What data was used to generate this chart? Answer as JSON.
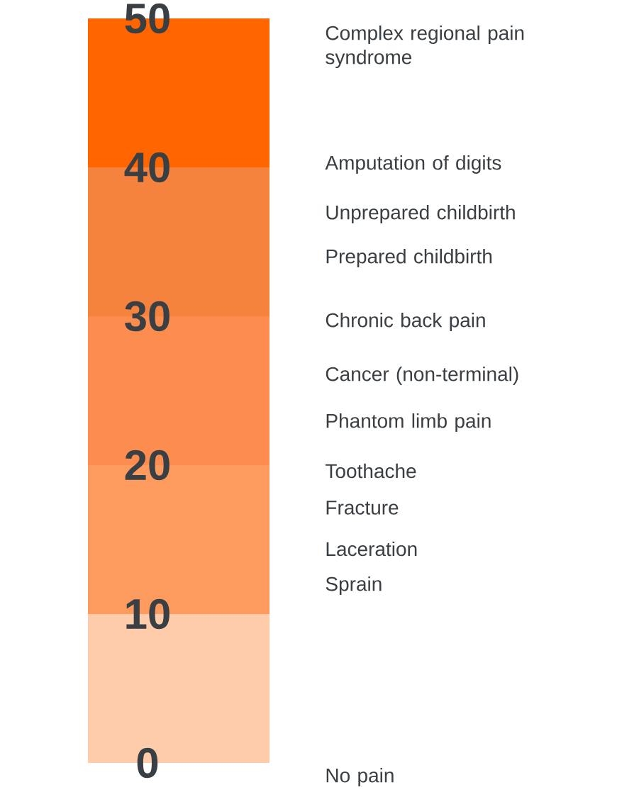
{
  "chart_data": {
    "type": "bar",
    "stacked": true,
    "categories": [
      null
    ],
    "series": [
      {
        "color": "#fecbab",
        "values": [
          10
        ]
      },
      {
        "color": "#fd9a5e",
        "values": [
          10
        ]
      },
      {
        "color": "#fd8d4f",
        "values": [
          10
        ]
      },
      {
        "color": "#f5823d",
        "values": [
          10
        ]
      },
      {
        "color": "#ff6600",
        "values": [
          10
        ]
      }
    ],
    "ylim": [
      0,
      50
    ],
    "yticks": [
      0,
      10,
      20,
      30,
      40,
      50
    ],
    "annotations": [
      "Complex regional pain syndrome",
      "Amputation of digits",
      "Unprepared childbirth",
      "Prepared childbirth",
      "Chronic back pain",
      "Cancer (non-terminal)",
      "Phantom limb pain",
      "Toothache",
      "Fracture",
      "Laceration",
      "Sprain",
      "No pain"
    ]
  }
}
